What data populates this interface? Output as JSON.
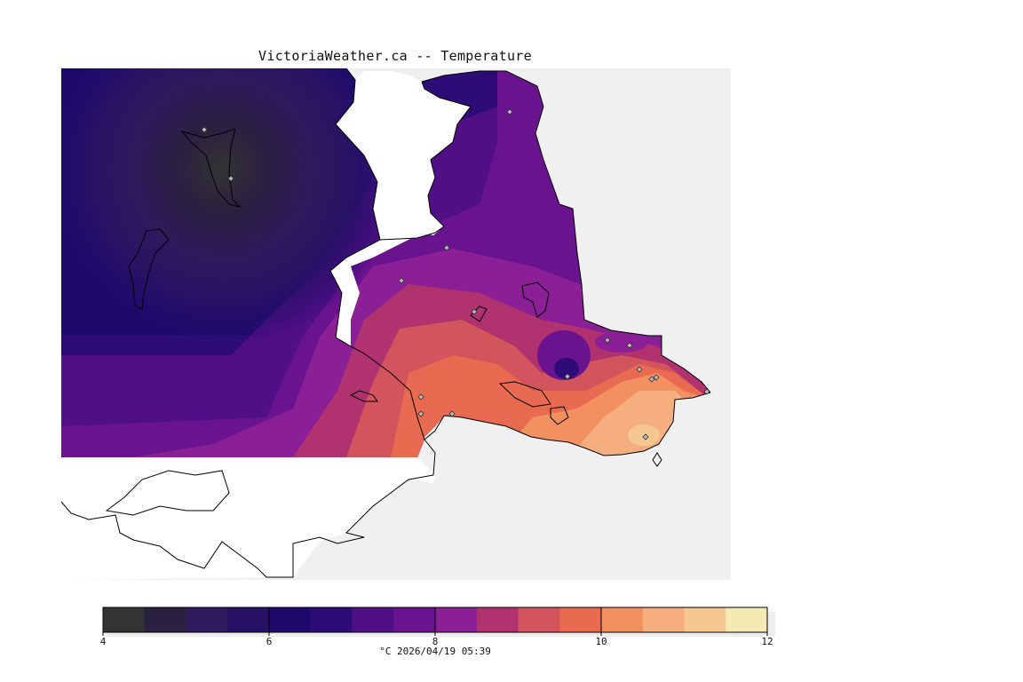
{
  "title": "VictoriaWeather.ca -- Temperature",
  "caption": "°C  2026/04/19 05:39",
  "colors": {
    "background": "#ffffff",
    "land_outside_data": "#f0f0f0",
    "coastline": "#000000"
  },
  "legend": {
    "min": 4,
    "max": 12,
    "step": 0.5,
    "tick_labels": [
      "4",
      "6",
      "8",
      "10",
      "12"
    ],
    "bands": [
      "#333333",
      "#2a2040",
      "#2e1a5c",
      "#281265",
      "#1e0a6b",
      "#2d0c78",
      "#500f85",
      "#6a138e",
      "#8b1f95",
      "#b0336f",
      "#d2545c",
      "#e86a50",
      "#f29060",
      "#f5ae7e",
      "#f5c892",
      "#f5eab4"
    ]
  },
  "stations_count": 17
}
